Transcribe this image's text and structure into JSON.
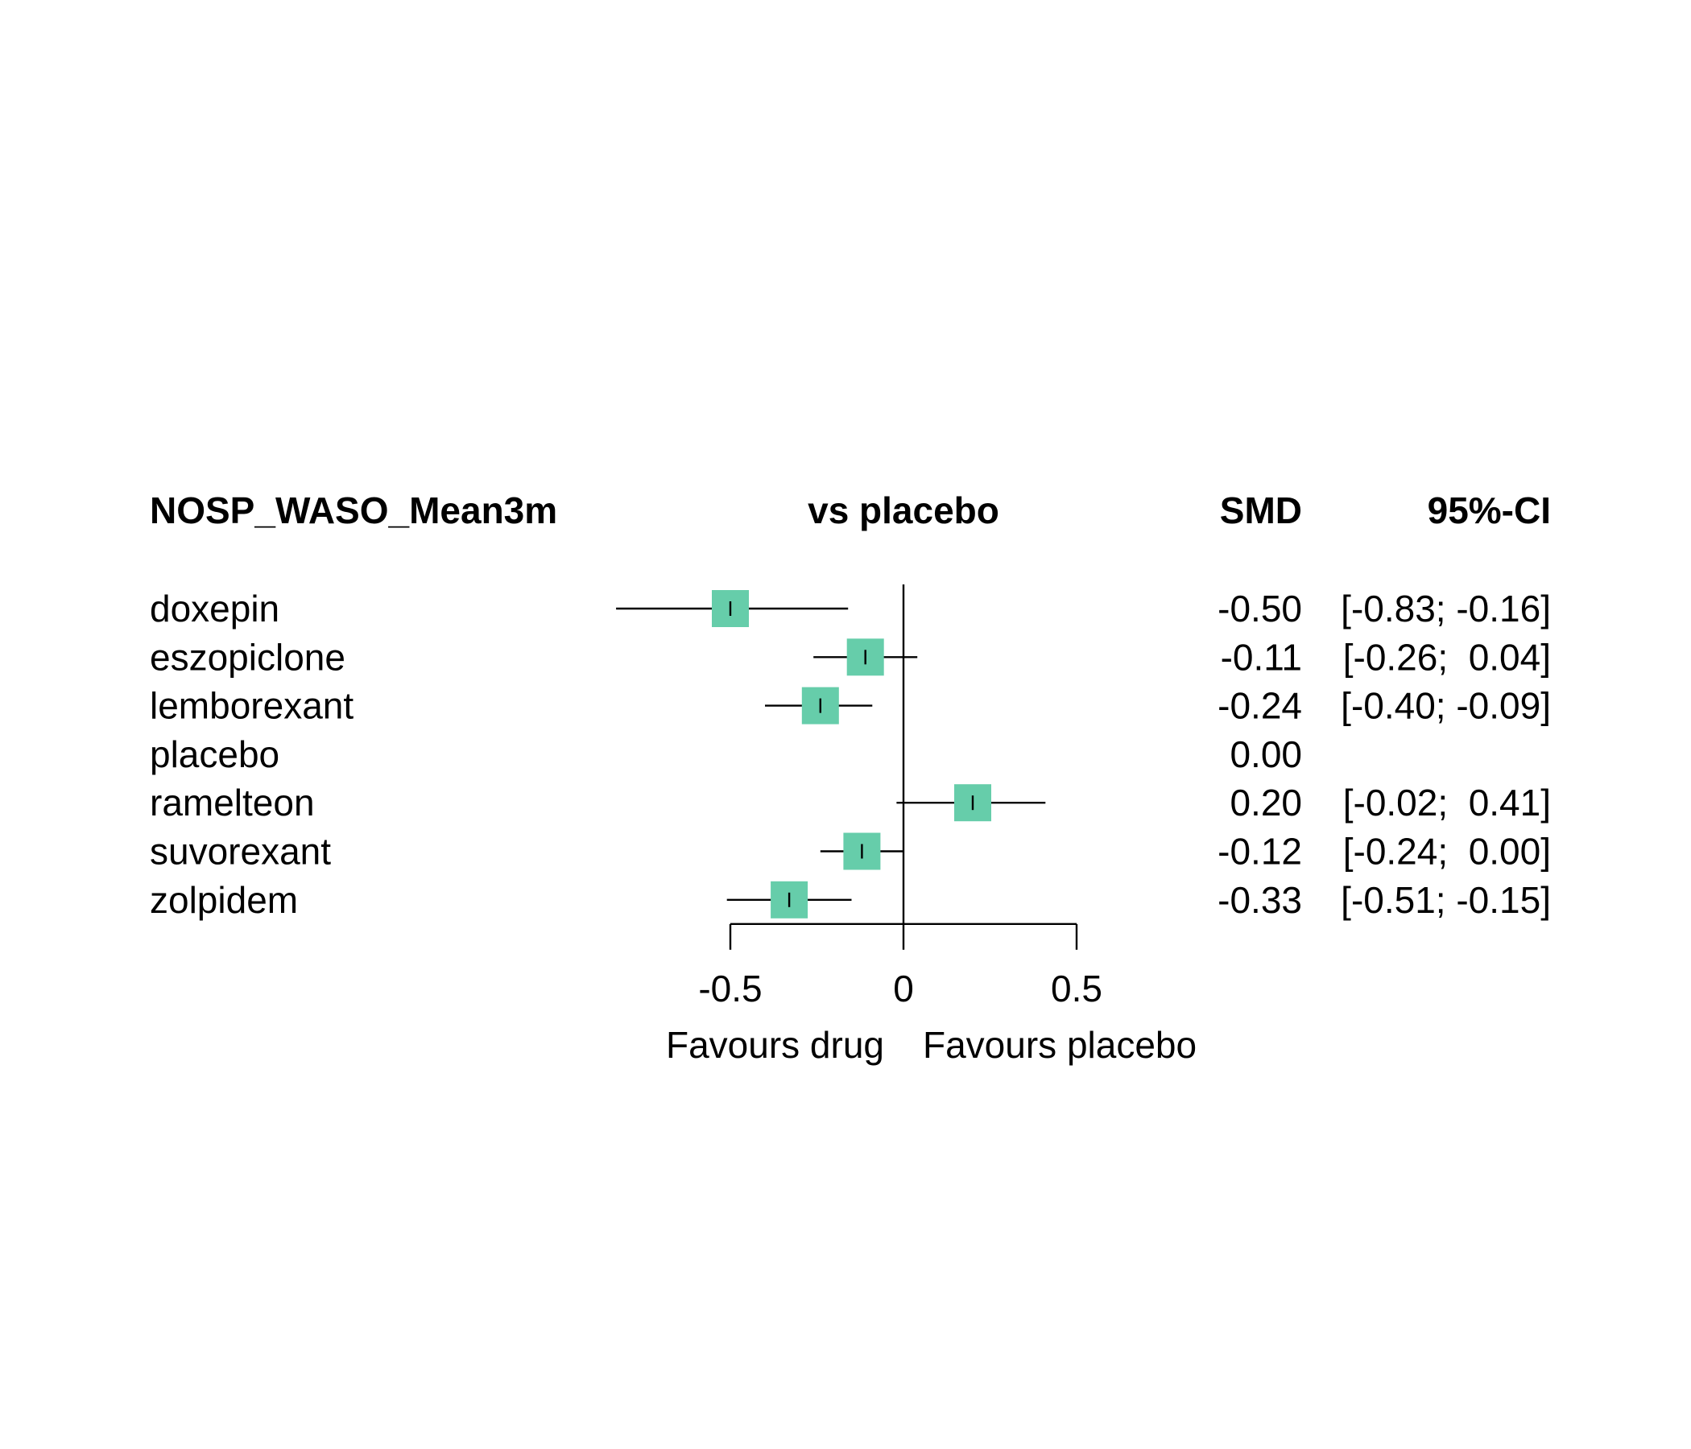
{
  "chart_data": {
    "type": "forest",
    "headers": {
      "outcome": "NOSP_WASO_Mean3m",
      "comparison": "vs placebo",
      "estimate": "SMD",
      "interval": "95%-CI"
    },
    "rows": [
      {
        "label": "doxepin",
        "smd": -0.5,
        "lower": -0.83,
        "upper": -0.16,
        "smd_text": "-0.50",
        "ci_text": "[-0.83; -0.16]"
      },
      {
        "label": "eszopiclone",
        "smd": -0.11,
        "lower": -0.26,
        "upper": 0.04,
        "smd_text": "-0.11",
        "ci_text": "[-0.26;  0.04]"
      },
      {
        "label": "lemborexant",
        "smd": -0.24,
        "lower": -0.4,
        "upper": -0.09,
        "smd_text": "-0.24",
        "ci_text": "[-0.40; -0.09]"
      },
      {
        "label": "placebo",
        "smd": 0.0,
        "lower": null,
        "upper": null,
        "smd_text": "0.00",
        "ci_text": ""
      },
      {
        "label": "ramelteon",
        "smd": 0.2,
        "lower": -0.02,
        "upper": 0.41,
        "smd_text": "0.20",
        "ci_text": "[-0.02;  0.41]"
      },
      {
        "label": "suvorexant",
        "smd": -0.12,
        "lower": -0.24,
        "upper": 0.0,
        "smd_text": "-0.12",
        "ci_text": "[-0.24;  0.00]"
      },
      {
        "label": "zolpidem",
        "smd": -0.33,
        "lower": -0.51,
        "upper": -0.15,
        "smd_text": "-0.33",
        "ci_text": "[-0.51; -0.15]"
      }
    ],
    "x_ticks": [
      {
        "value": -0.5,
        "label": "-0.5"
      },
      {
        "value": 0,
        "label": "0"
      },
      {
        "value": 0.5,
        "label": "0.5"
      }
    ],
    "xlim": [
      -0.5,
      0.5
    ],
    "xlabel_left": "Favours drug",
    "xlabel_right": "Favours placebo",
    "reference_line": 0,
    "marker_color": "#66cdaa",
    "line_color": "#000000"
  }
}
